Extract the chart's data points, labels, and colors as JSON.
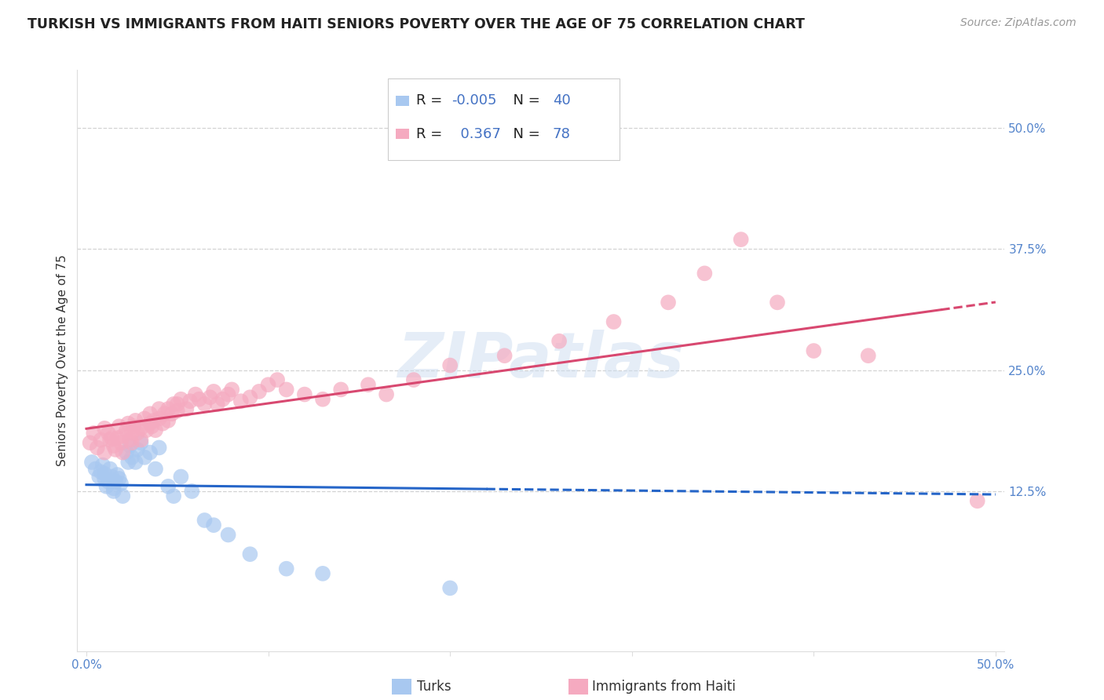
{
  "title": "TURKISH VS IMMIGRANTS FROM HAITI SENIORS POVERTY OVER THE AGE OF 75 CORRELATION CHART",
  "source": "Source: ZipAtlas.com",
  "ylabel": "Seniors Poverty Over the Age of 75",
  "x_ticks": [
    0.0,
    0.1,
    0.2,
    0.3,
    0.4,
    0.5
  ],
  "x_tick_labels": [
    "0.0%",
    "",
    "",
    "",
    "",
    "50.0%"
  ],
  "y_ticks": [
    0.125,
    0.25,
    0.375,
    0.5
  ],
  "y_tick_labels": [
    "12.5%",
    "25.0%",
    "37.5%",
    "50.0%"
  ],
  "xlim": [
    -0.005,
    0.505
  ],
  "ylim": [
    -0.04,
    0.56
  ],
  "turks_R": -0.005,
  "turks_N": 40,
  "haiti_R": 0.367,
  "haiti_N": 78,
  "turks_color": "#a8c8f0",
  "haiti_color": "#f5aac0",
  "turks_line_color": "#2565c8",
  "haiti_line_color": "#d84870",
  "background_color": "#ffffff",
  "grid_color": "#c8c8c8",
  "turks_line_solid_end": 0.22,
  "turks_x": [
    0.003,
    0.005,
    0.007,
    0.008,
    0.009,
    0.01,
    0.01,
    0.011,
    0.012,
    0.013,
    0.014,
    0.015,
    0.015,
    0.016,
    0.017,
    0.018,
    0.019,
    0.02,
    0.022,
    0.023,
    0.024,
    0.025,
    0.027,
    0.028,
    0.03,
    0.032,
    0.035,
    0.038,
    0.04,
    0.045,
    0.048,
    0.052,
    0.058,
    0.065,
    0.07,
    0.078,
    0.09,
    0.11,
    0.13,
    0.2
  ],
  "turks_y": [
    0.155,
    0.148,
    0.14,
    0.145,
    0.152,
    0.138,
    0.143,
    0.13,
    0.135,
    0.148,
    0.14,
    0.125,
    0.128,
    0.135,
    0.142,
    0.138,
    0.133,
    0.12,
    0.165,
    0.155,
    0.172,
    0.16,
    0.155,
    0.168,
    0.175,
    0.16,
    0.165,
    0.148,
    0.17,
    0.13,
    0.12,
    0.14,
    0.125,
    0.095,
    0.09,
    0.08,
    0.06,
    0.045,
    0.04,
    0.025
  ],
  "haiti_x": [
    0.002,
    0.004,
    0.006,
    0.008,
    0.01,
    0.01,
    0.012,
    0.013,
    0.014,
    0.015,
    0.016,
    0.017,
    0.018,
    0.019,
    0.02,
    0.02,
    0.022,
    0.023,
    0.024,
    0.025,
    0.025,
    0.026,
    0.027,
    0.028,
    0.03,
    0.03,
    0.032,
    0.033,
    0.035,
    0.035,
    0.036,
    0.037,
    0.038,
    0.04,
    0.04,
    0.042,
    0.043,
    0.045,
    0.045,
    0.047,
    0.048,
    0.05,
    0.05,
    0.052,
    0.055,
    0.057,
    0.06,
    0.062,
    0.065,
    0.068,
    0.07,
    0.072,
    0.075,
    0.078,
    0.08,
    0.085,
    0.09,
    0.095,
    0.1,
    0.105,
    0.11,
    0.12,
    0.13,
    0.14,
    0.155,
    0.165,
    0.18,
    0.2,
    0.23,
    0.26,
    0.29,
    0.32,
    0.34,
    0.36,
    0.38,
    0.4,
    0.43,
    0.49
  ],
  "haiti_y": [
    0.175,
    0.185,
    0.17,
    0.178,
    0.165,
    0.19,
    0.185,
    0.178,
    0.18,
    0.172,
    0.168,
    0.18,
    0.192,
    0.175,
    0.182,
    0.165,
    0.188,
    0.195,
    0.178,
    0.185,
    0.175,
    0.192,
    0.198,
    0.185,
    0.19,
    0.178,
    0.2,
    0.188,
    0.195,
    0.205,
    0.192,
    0.198,
    0.188,
    0.2,
    0.21,
    0.195,
    0.205,
    0.21,
    0.198,
    0.205,
    0.215,
    0.208,
    0.215,
    0.22,
    0.21,
    0.218,
    0.225,
    0.22,
    0.215,
    0.222,
    0.228,
    0.215,
    0.22,
    0.225,
    0.23,
    0.218,
    0.222,
    0.228,
    0.235,
    0.24,
    0.23,
    0.225,
    0.22,
    0.23,
    0.235,
    0.225,
    0.24,
    0.255,
    0.265,
    0.28,
    0.3,
    0.32,
    0.35,
    0.385,
    0.32,
    0.27,
    0.265,
    0.115
  ]
}
